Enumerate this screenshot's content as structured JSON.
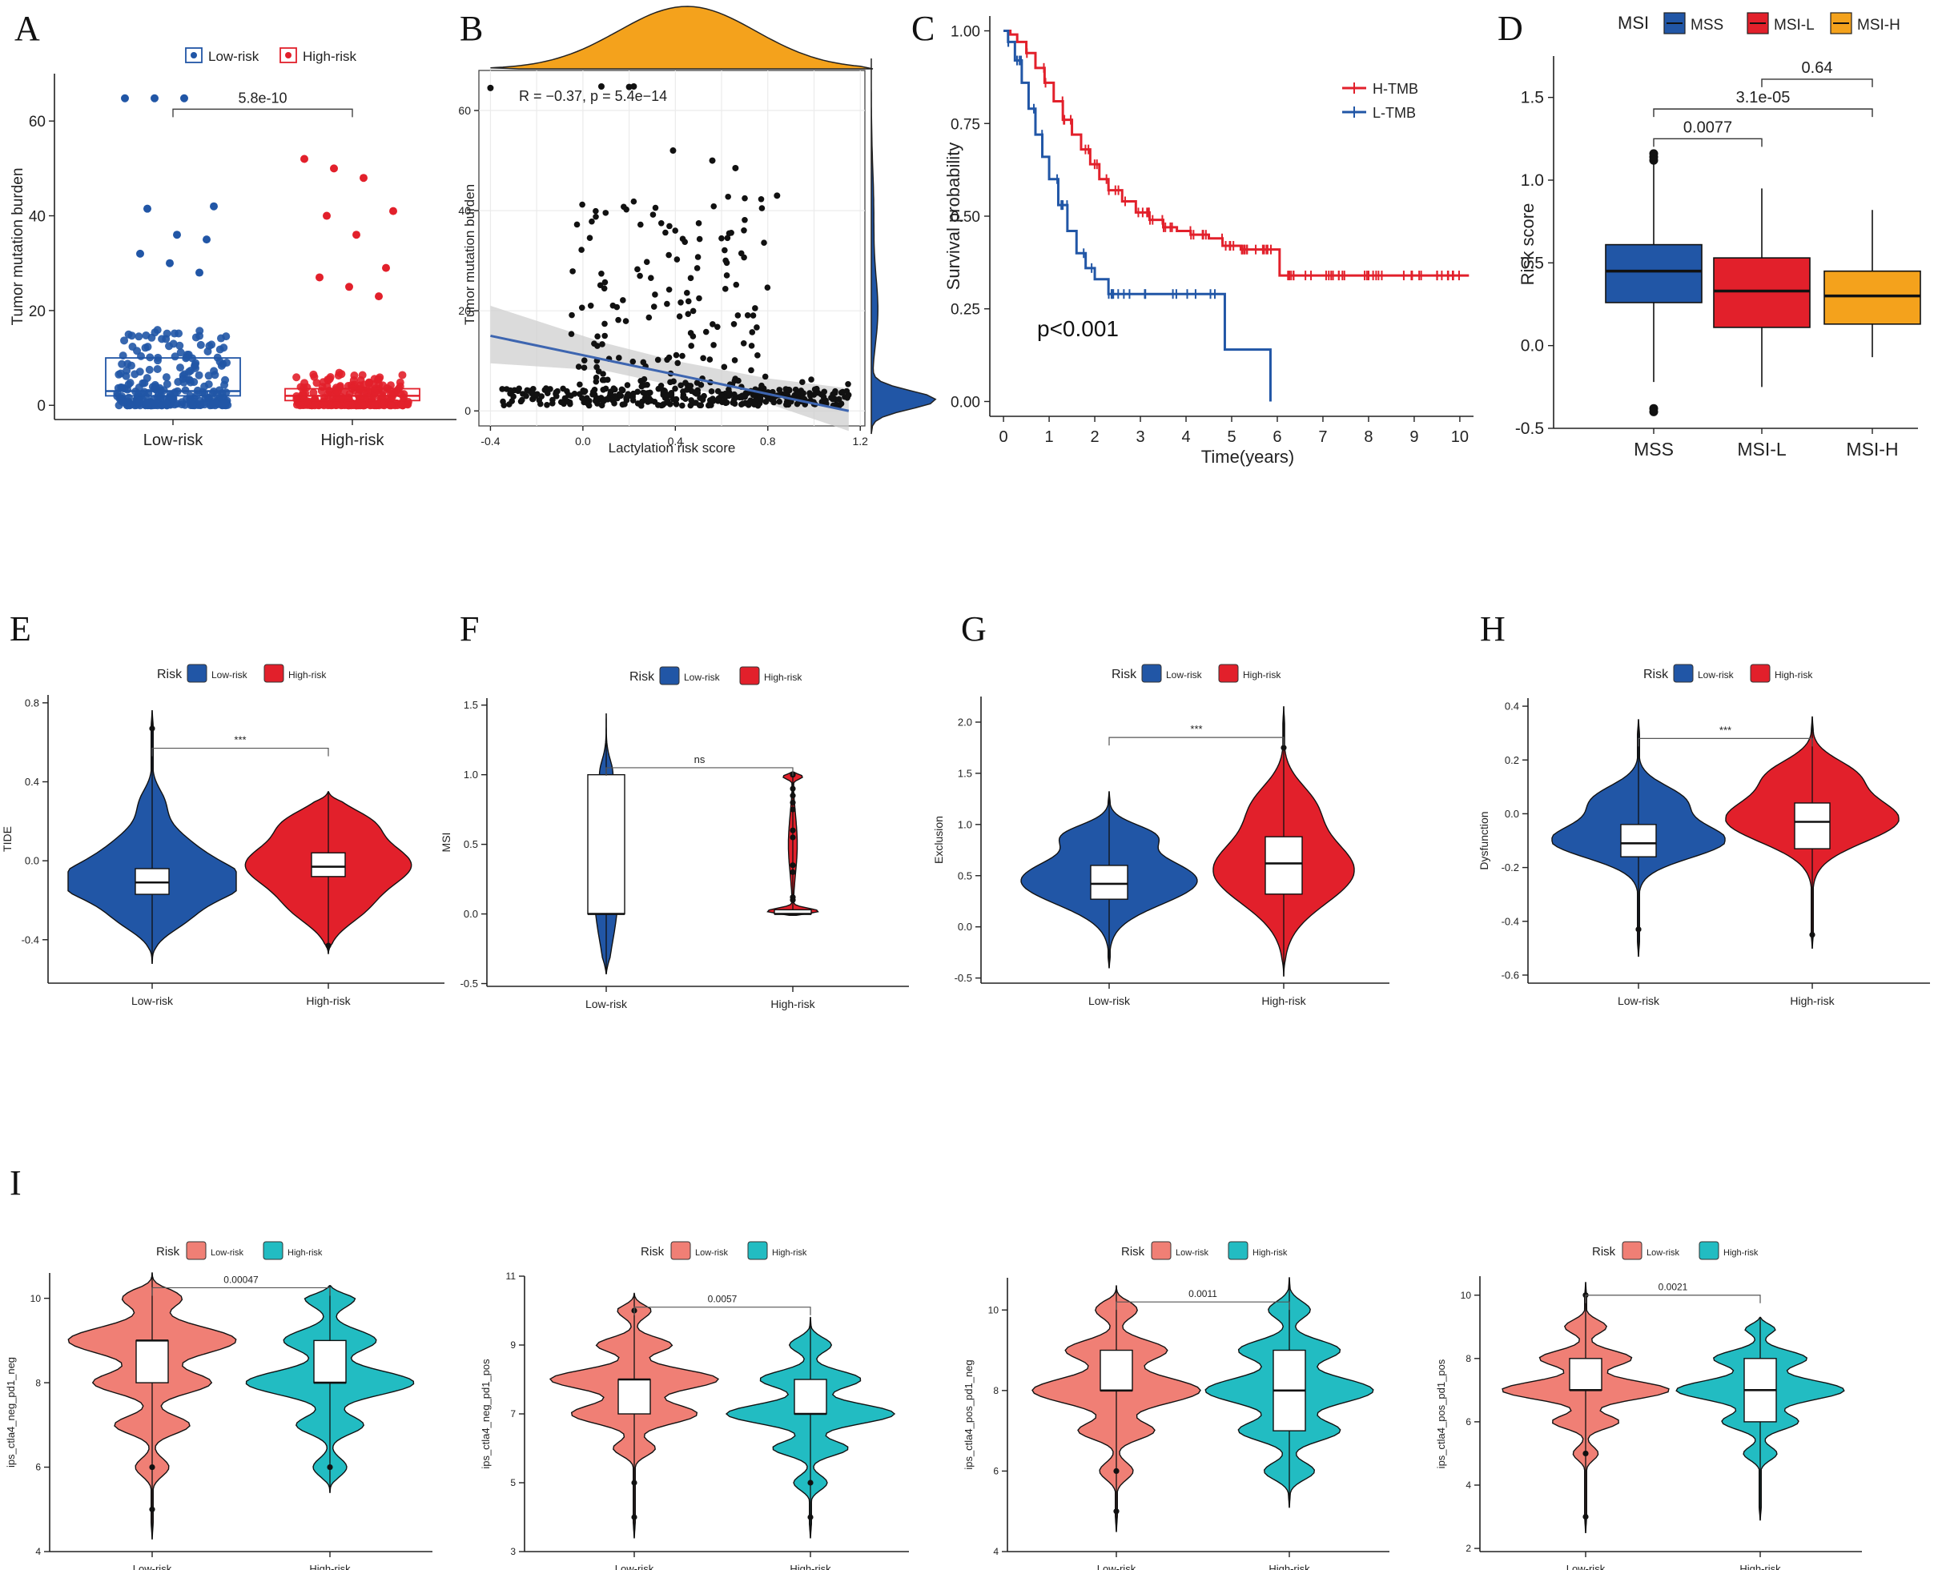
{
  "figure": {
    "panel_letters": [
      "A",
      "B",
      "C",
      "D",
      "E",
      "F",
      "G",
      "H",
      "I"
    ]
  },
  "colors": {
    "low_blue": "#2156A6",
    "high_red": "#E2202B",
    "msih_orange": "#F4A21C",
    "salmon": "#F07F75",
    "teal": "#22BCC2",
    "grey_band": "#cfcfcf",
    "fit_line": "#3D65B0"
  },
  "chart_data": [
    {
      "panel": "A",
      "type": "box",
      "legend": [
        "Low-risk",
        "High-risk"
      ],
      "categories": [
        "Low-risk",
        "High-risk"
      ],
      "ylabel": "Tumor mutation burden",
      "ylim": [
        -3,
        70
      ],
      "yticks": [
        0,
        20,
        40,
        60
      ],
      "stats": [
        {
          "q1": 2,
          "median": 3,
          "q3": 10,
          "whisker_low": 0,
          "whisker_high": 22
        },
        {
          "q1": 1,
          "median": 2,
          "q3": 3.5,
          "whisker_low": 0,
          "whisker_high": 6
        }
      ],
      "outliers_shown": [
        {
          "group": 0,
          "values": [
            64.8,
            64.8,
            64.8,
            42,
            41.5,
            36,
            35,
            32,
            30,
            28
          ]
        },
        {
          "group": 1,
          "values": [
            52,
            50,
            48,
            41,
            40,
            36,
            29,
            27,
            25,
            23
          ]
        }
      ],
      "pvalue": "5.8e-10"
    },
    {
      "panel": "B",
      "type": "scatter",
      "xlabel": "Lactylation risk score",
      "ylabel": "Tumor mutation burden",
      "xlim": [
        -0.45,
        1.22
      ],
      "ylim": [
        -3,
        68
      ],
      "xticks": [
        "-0.4",
        "0.0",
        "0.4",
        "0.8",
        "1.2"
      ],
      "yticks": [
        "0",
        "20",
        "40",
        "60"
      ],
      "annotation_R": "R = −0.37, p = 5.4e−14",
      "fit": {
        "x": [
          -0.4,
          1.15
        ],
        "y": [
          15,
          0
        ]
      },
      "density_top": "orange",
      "density_right": "blue"
    },
    {
      "panel": "C",
      "type": "line",
      "xlabel": "Time(years)",
      "ylabel": "Survival probability",
      "xlim": [
        -0.3,
        10.3
      ],
      "ylim": [
        -0.04,
        1.04
      ],
      "xticks": [
        "0",
        "1",
        "2",
        "3",
        "4",
        "5",
        "6",
        "7",
        "8",
        "9",
        "10"
      ],
      "yticks": [
        "0.00",
        "0.25",
        "0.50",
        "0.75",
        "1.00"
      ],
      "pvalue": "p<0.001",
      "series": [
        {
          "name": "H-TMB",
          "x": [
            0,
            0.15,
            0.3,
            0.5,
            0.7,
            0.9,
            1.1,
            1.3,
            1.5,
            1.7,
            1.9,
            2.1,
            2.3,
            2.6,
            2.9,
            3.2,
            3.5,
            3.8,
            4.1,
            4.5,
            4.8,
            5.2,
            6.0,
            6.05,
            10.2
          ],
          "y": [
            1.0,
            0.99,
            0.97,
            0.94,
            0.9,
            0.86,
            0.81,
            0.76,
            0.72,
            0.68,
            0.64,
            0.6,
            0.57,
            0.54,
            0.51,
            0.49,
            0.47,
            0.46,
            0.45,
            0.44,
            0.42,
            0.41,
            0.41,
            0.34,
            0.34
          ]
        },
        {
          "name": "L-TMB",
          "x": [
            0,
            0.1,
            0.25,
            0.4,
            0.55,
            0.7,
            0.85,
            1.0,
            1.2,
            1.4,
            1.6,
            1.8,
            2.0,
            2.3,
            2.6,
            3.0,
            4.8,
            4.85,
            5.8,
            5.85
          ],
          "y": [
            1.0,
            0.97,
            0.92,
            0.86,
            0.79,
            0.72,
            0.66,
            0.6,
            0.53,
            0.46,
            0.4,
            0.36,
            0.33,
            0.29,
            0.29,
            0.29,
            0.29,
            0.14,
            0.14,
            0.0
          ]
        }
      ]
    },
    {
      "panel": "D",
      "type": "box",
      "legend_title": "MSI",
      "legend": [
        "MSS",
        "MSI-L",
        "MSI-H"
      ],
      "categories": [
        "MSS",
        "MSI-L",
        "MSI-H"
      ],
      "ylabel": "Risk score",
      "ylim": [
        -0.5,
        1.75
      ],
      "yticks": [
        "-0.5",
        "0.0",
        "0.5",
        "1.0",
        "1.5"
      ],
      "stats": [
        {
          "q1": 0.26,
          "median": 0.45,
          "q3": 0.61,
          "whisker_low": -0.22,
          "whisker_high": 1.1
        },
        {
          "q1": 0.11,
          "median": 0.33,
          "q3": 0.53,
          "whisker_low": -0.25,
          "whisker_high": 0.95
        },
        {
          "q1": 0.13,
          "median": 0.3,
          "q3": 0.45,
          "whisker_low": -0.07,
          "whisker_high": 0.82
        }
      ],
      "outliers_shown": [
        {
          "group": 0,
          "values": [
            1.16,
            1.14,
            1.12,
            -0.38,
            -0.4
          ]
        }
      ],
      "pairs": [
        {
          "from": 0,
          "to": 1,
          "label": "0.0077"
        },
        {
          "from": 0,
          "to": 2,
          "label": "3.1e-05"
        },
        {
          "from": 1,
          "to": 2,
          "label": "0.64"
        }
      ]
    },
    {
      "panel": "E",
      "type": "violin",
      "legend_title": "Risk",
      "legend": [
        "Low-risk",
        "High-risk"
      ],
      "categories": [
        "Low-risk",
        "High-risk"
      ],
      "ylabel": "TIDE",
      "ylim": [
        -0.62,
        0.84
      ],
      "yticks": [
        "-0.4",
        "0.0",
        "0.4",
        "0.8"
      ],
      "stats": [
        {
          "q1": -0.17,
          "median": -0.11,
          "q3": -0.04,
          "min": -0.52,
          "max": 0.76
        },
        {
          "q1": -0.08,
          "median": -0.03,
          "q3": 0.04,
          "min": -0.47,
          "max": 0.35
        }
      ],
      "significance": "***"
    },
    {
      "panel": "F",
      "type": "violin",
      "legend_title": "Risk",
      "legend": [
        "Low-risk",
        "High-risk"
      ],
      "categories": [
        "Low-risk",
        "High-risk"
      ],
      "ylabel": "MSI",
      "ylim": [
        -0.52,
        1.55
      ],
      "yticks": [
        "-0.5",
        "0.0",
        "0.5",
        "1.0",
        "1.5"
      ],
      "stats": [
        {
          "q1": 0.0,
          "median": 0.0,
          "q3": 1.0,
          "min": -0.43,
          "max": 1.44
        },
        {
          "q1": 0.0,
          "median": 0.0,
          "q3": 0.03,
          "min": -0.01,
          "max": 1.02
        }
      ],
      "significance": "ns"
    },
    {
      "panel": "G",
      "type": "violin",
      "legend_title": "Risk",
      "legend": [
        "Low-risk",
        "High-risk"
      ],
      "categories": [
        "Low-risk",
        "High-risk"
      ],
      "ylabel": "Exclusion",
      "ylim": [
        -0.55,
        2.25
      ],
      "yticks": [
        "-0.5",
        "0.0",
        "0.5",
        "1.0",
        "1.5",
        "2.0"
      ],
      "stats": [
        {
          "q1": 0.27,
          "median": 0.42,
          "q3": 0.6,
          "min": -0.4,
          "max": 1.32
        },
        {
          "q1": 0.32,
          "median": 0.62,
          "q3": 0.88,
          "min": -0.48,
          "max": 2.15
        }
      ],
      "significance": "***"
    },
    {
      "panel": "H",
      "type": "violin",
      "legend_title": "Risk",
      "legend": [
        "Low-risk",
        "High-risk"
      ],
      "categories": [
        "Low-risk",
        "High-risk"
      ],
      "ylabel": "Dysfunction",
      "ylim": [
        -0.63,
        0.43
      ],
      "yticks": [
        "-0.6",
        "-0.4",
        "-0.2",
        "0.0",
        "0.2",
        "0.4"
      ],
      "stats": [
        {
          "q1": -0.16,
          "median": -0.11,
          "q3": -0.04,
          "min": -0.53,
          "max": 0.35
        },
        {
          "q1": -0.13,
          "median": -0.03,
          "q3": 0.04,
          "min": -0.5,
          "max": 0.36
        }
      ],
      "significance": "***"
    },
    {
      "panel": "I1",
      "type": "violin",
      "legend_title": "Risk",
      "legend": [
        "Low-risk",
        "High-risk"
      ],
      "categories": [
        "Low-risk",
        "High-risk"
      ],
      "ylabel": "ips_ctla4_neg_pd1_neg",
      "ylim": [
        4,
        10.6
      ],
      "yticks": [
        "4",
        "6",
        "8",
        "10"
      ],
      "stats": [
        {
          "q1": 8,
          "median": 9,
          "q3": 9,
          "min": 4.3,
          "max": 10.6
        },
        {
          "q1": 8,
          "median": 8,
          "q3": 9,
          "min": 5.4,
          "max": 10.3
        }
      ],
      "pvalue": "0.00047"
    },
    {
      "panel": "I2",
      "type": "violin",
      "legend_title": "Risk",
      "legend": [
        "Low-risk",
        "High-risk"
      ],
      "categories": [
        "Low-risk",
        "High-risk"
      ],
      "ylabel": "ips_ctla4_neg_pd1_pos",
      "ylim": [
        3,
        11
      ],
      "yticks": [
        "3",
        "5",
        "7",
        "9",
        "11"
      ],
      "stats": [
        {
          "q1": 7,
          "median": 8,
          "q3": 8,
          "min": 3.4,
          "max": 10.5
        },
        {
          "q1": 7,
          "median": 7,
          "q3": 8,
          "min": 3.4,
          "max": 9.8
        }
      ],
      "pvalue": "0.0057"
    },
    {
      "panel": "I3",
      "type": "violin",
      "legend_title": "Risk",
      "legend": [
        "Low-risk",
        "High-risk"
      ],
      "categories": [
        "Low-risk",
        "High-risk"
      ],
      "ylabel": "ips_ctla4_pos_pd1_neg",
      "ylim": [
        4,
        10.8
      ],
      "yticks": [
        "4",
        "6",
        "8",
        "10"
      ],
      "stats": [
        {
          "q1": 8,
          "median": 8,
          "q3": 9,
          "min": 4.5,
          "max": 10.6
        },
        {
          "q1": 7,
          "median": 8,
          "q3": 9,
          "min": 5.1,
          "max": 10.8
        }
      ],
      "pvalue": "0.0011"
    },
    {
      "panel": "I4",
      "type": "violin",
      "legend_title": "Risk",
      "legend": [
        "Low-risk",
        "High-risk"
      ],
      "categories": [
        "Low-risk",
        "High-risk"
      ],
      "ylabel": "ips_ctla4_pos_pd1_pos",
      "ylim": [
        1.9,
        10.6
      ],
      "yticks": [
        "2",
        "4",
        "6",
        "8",
        "10"
      ],
      "stats": [
        {
          "q1": 7,
          "median": 7,
          "q3": 8,
          "min": 2.5,
          "max": 10.4
        },
        {
          "q1": 6,
          "median": 7,
          "q3": 8,
          "min": 2.9,
          "max": 9.3
        }
      ],
      "pvalue": "0.0021"
    }
  ]
}
